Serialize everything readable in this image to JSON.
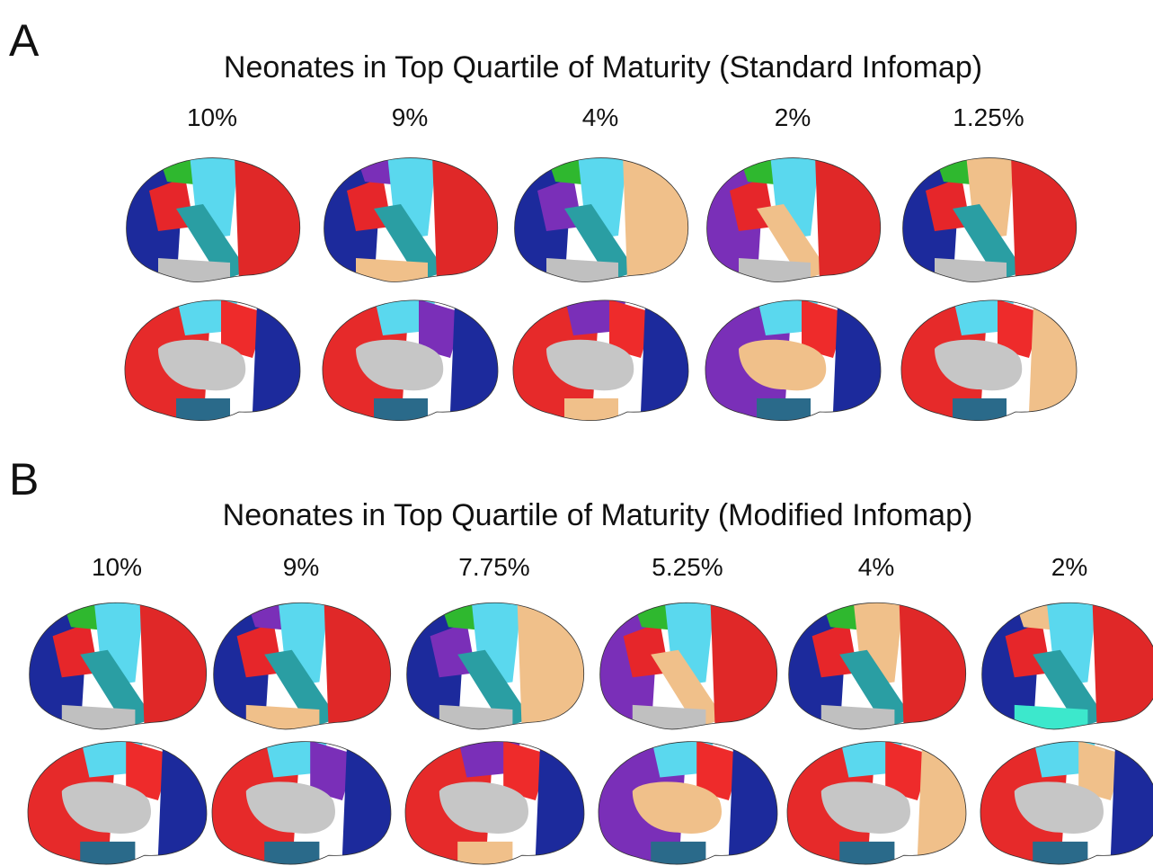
{
  "panels": [
    {
      "label": "A",
      "title": "Neonates in Top Quartile of Maturity (Standard Infomap)",
      "thresholds": [
        "10%",
        "9%",
        "4%",
        "2%",
        "1.25%"
      ]
    },
    {
      "label": "B",
      "title": "Neonates in Top Quartile of Maturity (Modified Infomap)",
      "thresholds": [
        "10%",
        "9%",
        "7.75%",
        "5.25%",
        "4%",
        "2%"
      ]
    }
  ]
}
